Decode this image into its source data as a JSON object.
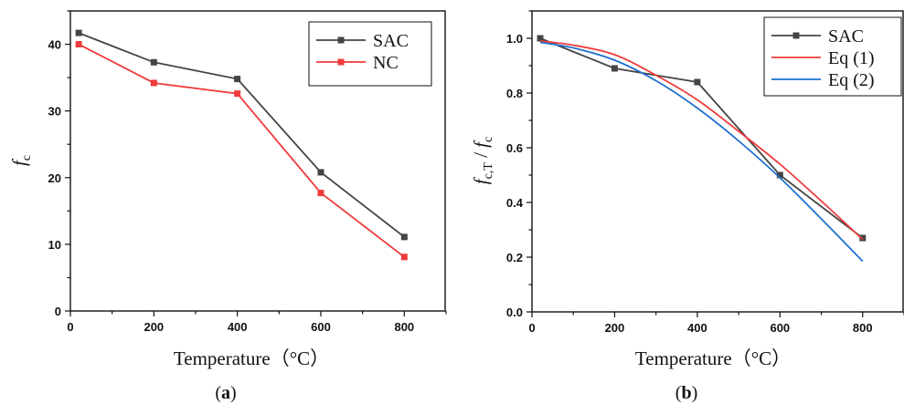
{
  "chart_data": [
    {
      "type": "line",
      "panel_label": "a",
      "xlabel": "Temperature（°C）",
      "ylabel_base": "f",
      "ylabel_sub": "c",
      "xlim": [
        0,
        900
      ],
      "ylim": [
        0,
        45
      ],
      "xticks": [
        0,
        200,
        400,
        600,
        800
      ],
      "yticks": [
        0,
        10,
        20,
        30,
        40
      ],
      "grid": false,
      "legend_position": "top-right",
      "series": [
        {
          "name": "SAC",
          "color": "#444444",
          "marker": "square",
          "x": [
            20,
            200,
            400,
            600,
            800
          ],
          "y": [
            41.7,
            37.3,
            34.8,
            20.8,
            11.1
          ]
        },
        {
          "name": "NC",
          "color": "#ef3b3b",
          "marker": "square",
          "x": [
            20,
            200,
            400,
            600,
            800
          ],
          "y": [
            40.0,
            34.2,
            32.6,
            17.7,
            8.1
          ]
        }
      ]
    },
    {
      "type": "line",
      "panel_label": "b",
      "xlabel": "Temperature（°C）",
      "ylabel_base": "f",
      "ylabel_sub": "c,T",
      "ylabel_mid": " / ",
      "ylabel_base2": "f",
      "ylabel_sub2": "c",
      "xlim": [
        0,
        900
      ],
      "ylim": [
        0,
        1.1
      ],
      "xticks": [
        0,
        200,
        400,
        600,
        800
      ],
      "yticks": [
        0.0,
        0.2,
        0.4,
        0.6,
        0.8,
        1.0
      ],
      "ytick_labels": [
        "0.0",
        "0.2",
        "0.4",
        "0.6",
        "0.8",
        "1.0"
      ],
      "grid": false,
      "legend_position": "top-right",
      "series": [
        {
          "name": "SAC",
          "color": "#444444",
          "marker": "square",
          "x": [
            20,
            200,
            400,
            600,
            800
          ],
          "y": [
            1.0,
            0.89,
            0.84,
            0.5,
            0.27
          ]
        },
        {
          "name": "Eq (1)",
          "color": "#ef3b3b",
          "marker": "none",
          "x": [
            20,
            100,
            200,
            300,
            400,
            500,
            600,
            700,
            800
          ],
          "y": [
            0.99,
            0.975,
            0.94,
            0.865,
            0.775,
            0.66,
            0.54,
            0.405,
            0.265
          ]
        },
        {
          "name": "Eq (2)",
          "color": "#1f6fd0",
          "marker": "none",
          "x": [
            20,
            100,
            200,
            300,
            400,
            500,
            600,
            700,
            800
          ],
          "y": [
            0.985,
            0.965,
            0.92,
            0.845,
            0.745,
            0.625,
            0.49,
            0.34,
            0.185
          ]
        }
      ]
    }
  ]
}
